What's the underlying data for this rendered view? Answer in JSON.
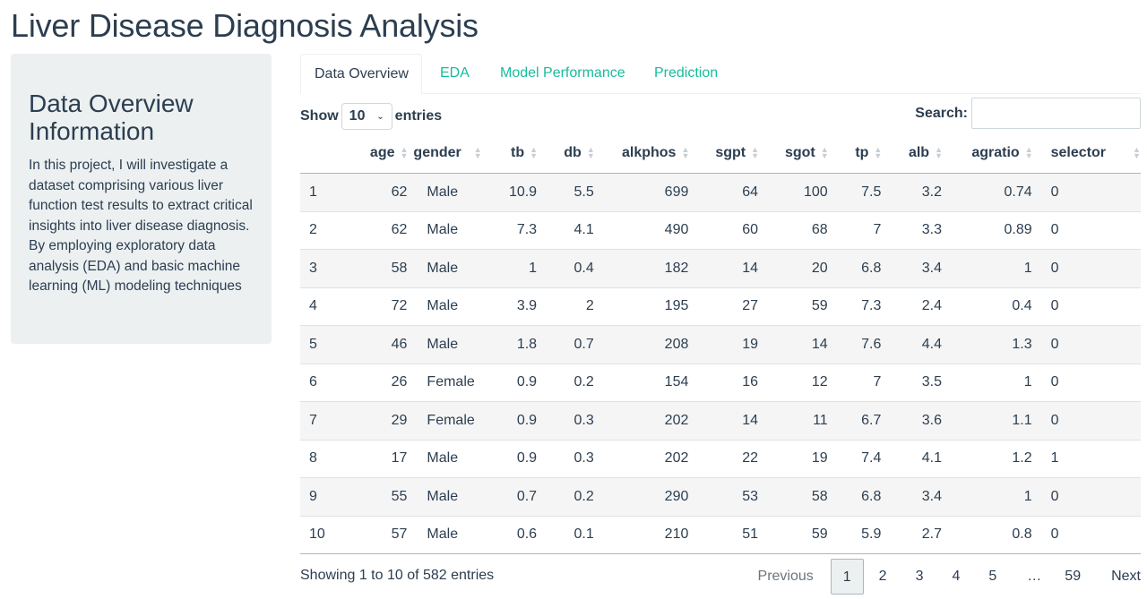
{
  "page": {
    "title": "Liver Disease Diagnosis Analysis"
  },
  "sidebar": {
    "heading": "Data Overview Information",
    "body": "In this project, I will investigate a dataset comprising various liver function test results to extract critical insights into liver disease diagnosis. By employing exploratory data analysis (EDA) and basic machine learning (ML) modeling techniques"
  },
  "tabs": [
    {
      "label": "Data Overview",
      "active": true
    },
    {
      "label": "EDA",
      "active": false
    },
    {
      "label": "Model Performance",
      "active": false
    },
    {
      "label": "Prediction",
      "active": false
    }
  ],
  "controls": {
    "show_label": "Show",
    "length_value": "10",
    "entries_label": "entries",
    "search_label": "Search:",
    "search_value": ""
  },
  "table": {
    "columns": [
      "",
      "age",
      "gender",
      "tb",
      "db",
      "alkphos",
      "sgpt",
      "sgot",
      "tp",
      "alb",
      "agratio",
      "selector"
    ],
    "rows": [
      [
        "1",
        "62",
        "Male",
        "10.9",
        "5.5",
        "699",
        "64",
        "100",
        "7.5",
        "3.2",
        "0.74",
        "0"
      ],
      [
        "2",
        "62",
        "Male",
        "7.3",
        "4.1",
        "490",
        "60",
        "68",
        "7",
        "3.3",
        "0.89",
        "0"
      ],
      [
        "3",
        "58",
        "Male",
        "1",
        "0.4",
        "182",
        "14",
        "20",
        "6.8",
        "3.4",
        "1",
        "0"
      ],
      [
        "4",
        "72",
        "Male",
        "3.9",
        "2",
        "195",
        "27",
        "59",
        "7.3",
        "2.4",
        "0.4",
        "0"
      ],
      [
        "5",
        "46",
        "Male",
        "1.8",
        "0.7",
        "208",
        "19",
        "14",
        "7.6",
        "4.4",
        "1.3",
        "0"
      ],
      [
        "6",
        "26",
        "Female",
        "0.9",
        "0.2",
        "154",
        "16",
        "12",
        "7",
        "3.5",
        "1",
        "0"
      ],
      [
        "7",
        "29",
        "Female",
        "0.9",
        "0.3",
        "202",
        "14",
        "11",
        "6.7",
        "3.6",
        "1.1",
        "0"
      ],
      [
        "8",
        "17",
        "Male",
        "0.9",
        "0.3",
        "202",
        "22",
        "19",
        "7.4",
        "4.1",
        "1.2",
        "1"
      ],
      [
        "9",
        "55",
        "Male",
        "0.7",
        "0.2",
        "290",
        "53",
        "58",
        "6.8",
        "3.4",
        "1",
        "0"
      ],
      [
        "10",
        "57",
        "Male",
        "0.6",
        "0.1",
        "210",
        "51",
        "59",
        "5.9",
        "2.7",
        "0.8",
        "0"
      ]
    ]
  },
  "footer": {
    "info": "Showing 1 to 10 of 582 entries",
    "previous": "Previous",
    "pages": [
      "1",
      "2",
      "3",
      "4",
      "5"
    ],
    "ellipsis": "…",
    "last_page": "59",
    "next": "Next"
  },
  "colors": {
    "primary": "#2c3e50",
    "accent": "#18bc9c",
    "sidebar_bg": "#ecf0f1"
  }
}
